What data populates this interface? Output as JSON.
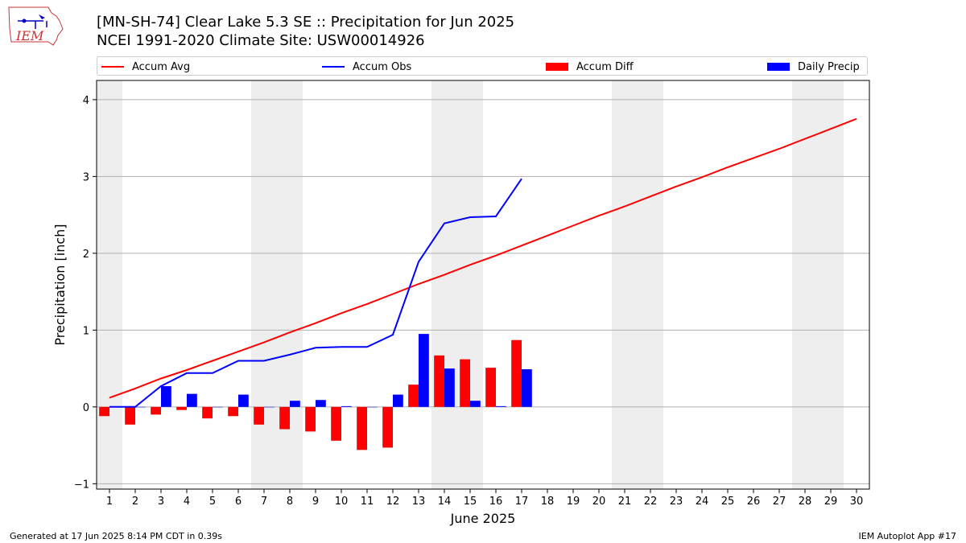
{
  "title_line1": "[MN-SH-74] Clear Lake 5.3 SE :: Precipitation for Jun 2025",
  "title_line2": "NCEI 1991-2020 Climate Site: USW00014926",
  "logo_text": "IEM",
  "footer_left": "Generated at 17 Jun 2025 8:14 PM CDT in 0.39s",
  "footer_right": "IEM Autoplot App #17",
  "colors": {
    "avg": "#ff0000",
    "obs": "#0000ff",
    "diff": "#ff0000",
    "daily": "#0000ff",
    "weekend": "#eeeeee"
  },
  "chart_data": {
    "type": "bar",
    "xlabel": "June 2025",
    "ylabel": "Precipitation [inch]",
    "xlim": [
      0.5,
      30.5
    ],
    "ylim": [
      -1.07,
      4.25
    ],
    "yticks": [
      -1,
      0,
      1,
      2,
      3,
      4
    ],
    "categories": [
      1,
      2,
      3,
      4,
      5,
      6,
      7,
      8,
      9,
      10,
      11,
      12,
      13,
      14,
      15,
      16,
      17,
      18,
      19,
      20,
      21,
      22,
      23,
      24,
      25,
      26,
      27,
      28,
      29,
      30
    ],
    "weekend_days": [
      1,
      7,
      8,
      14,
      15,
      21,
      22,
      28,
      29
    ],
    "legend": [
      "Accum Avg",
      "Accum Obs",
      "Accum Diff",
      "Daily Precip"
    ],
    "series": [
      {
        "name": "Accum Avg",
        "kind": "line",
        "x": [
          1,
          2,
          3,
          4,
          5,
          6,
          7,
          8,
          9,
          10,
          11,
          12,
          13,
          14,
          15,
          16,
          17,
          18,
          19,
          20,
          21,
          22,
          23,
          24,
          25,
          26,
          27,
          28,
          29,
          30
        ],
        "values": [
          0.12,
          0.24,
          0.37,
          0.48,
          0.6,
          0.72,
          0.84,
          0.97,
          1.09,
          1.22,
          1.34,
          1.47,
          1.6,
          1.72,
          1.85,
          1.97,
          2.1,
          2.23,
          2.36,
          2.49,
          2.61,
          2.74,
          2.87,
          2.99,
          3.12,
          3.24,
          3.36,
          3.49,
          3.62,
          3.75
        ]
      },
      {
        "name": "Accum Obs",
        "kind": "line",
        "x": [
          1,
          2,
          3,
          4,
          5,
          6,
          7,
          8,
          9,
          10,
          11,
          12,
          13,
          14,
          15,
          16,
          17
        ],
        "values": [
          0.0,
          0.0,
          0.27,
          0.44,
          0.44,
          0.6,
          0.6,
          0.68,
          0.77,
          0.78,
          0.78,
          0.94,
          1.89,
          2.39,
          2.47,
          2.48,
          2.97
        ]
      },
      {
        "name": "Accum Diff",
        "kind": "bar",
        "x": [
          1,
          2,
          3,
          4,
          5,
          6,
          7,
          8,
          9,
          10,
          11,
          12,
          13,
          14,
          15,
          16,
          17
        ],
        "values": [
          -0.12,
          -0.23,
          -0.1,
          -0.04,
          -0.15,
          -0.12,
          -0.23,
          -0.29,
          -0.32,
          -0.44,
          -0.56,
          -0.53,
          0.29,
          0.67,
          0.62,
          0.51,
          0.87
        ]
      },
      {
        "name": "Daily Precip",
        "kind": "bar",
        "x": [
          1,
          2,
          3,
          4,
          5,
          6,
          7,
          8,
          9,
          10,
          11,
          12,
          13,
          14,
          15,
          16,
          17
        ],
        "values": [
          0.0,
          0.0,
          0.27,
          0.17,
          0.0,
          0.16,
          0.0,
          0.08,
          0.09,
          0.01,
          0.0,
          0.16,
          0.95,
          0.5,
          0.08,
          0.01,
          0.49
        ]
      }
    ]
  }
}
